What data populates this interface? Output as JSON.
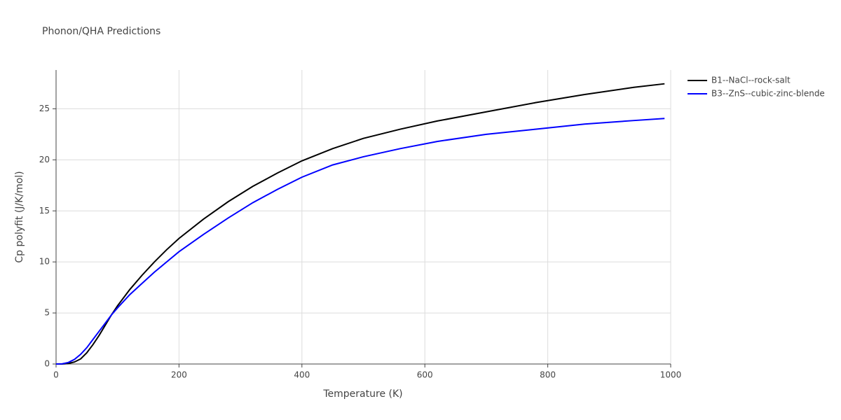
{
  "chart_data": {
    "type": "line",
    "title": "Phonon/QHA Predictions",
    "x_label": "Temperature (K)",
    "y_label": "Cp polyfit (J/K/mol)",
    "x": [
      0,
      10,
      20,
      30,
      40,
      50,
      60,
      70,
      80,
      90,
      100,
      120,
      140,
      160,
      180,
      200,
      240,
      280,
      320,
      360,
      400,
      450,
      500,
      560,
      620,
      700,
      780,
      860,
      940,
      990
    ],
    "series": [
      {
        "name": "B1--NaCl--rock-salt",
        "color": "#000000",
        "values": [
          0,
          0,
          0.05,
          0.2,
          0.5,
          1.1,
          1.9,
          2.8,
          3.8,
          4.8,
          5.7,
          7.3,
          8.7,
          10.0,
          11.2,
          12.3,
          14.2,
          15.9,
          17.4,
          18.7,
          19.9,
          21.1,
          22.1,
          23.0,
          23.8,
          24.7,
          25.6,
          26.4,
          27.1,
          27.45
        ]
      },
      {
        "name": "B3--ZnS--cubic-zinc-blende",
        "color": "#0000ff",
        "values": [
          0,
          0.02,
          0.15,
          0.45,
          0.95,
          1.6,
          2.4,
          3.2,
          4.0,
          4.8,
          5.5,
          6.8,
          7.9,
          9.0,
          10.0,
          11.0,
          12.7,
          14.3,
          15.8,
          17.1,
          18.3,
          19.5,
          20.3,
          21.1,
          21.8,
          22.5,
          23.0,
          23.5,
          23.85,
          24.05
        ]
      }
    ],
    "xlim": [
      0,
      1000
    ],
    "xticks": [
      0,
      200,
      400,
      600,
      800,
      1000
    ],
    "ylim": [
      0,
      28.8
    ],
    "yticks": [
      0,
      5,
      10,
      15,
      20,
      25
    ],
    "grid": true,
    "legend": "right"
  }
}
